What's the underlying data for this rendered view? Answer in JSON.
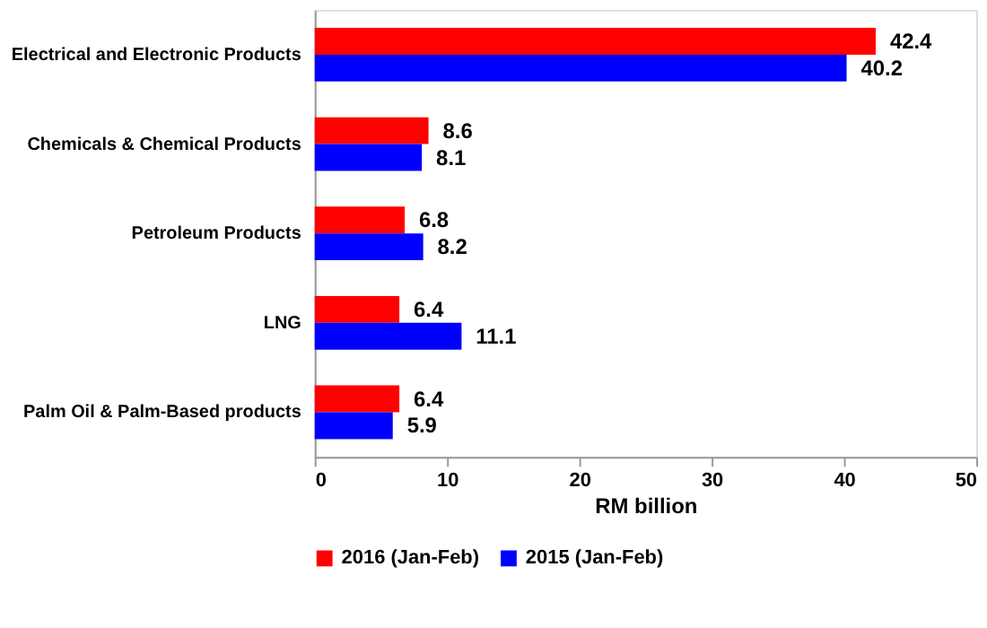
{
  "chart_data": {
    "type": "bar",
    "orientation": "horizontal",
    "xlabel": "RM billion",
    "categories": [
      "Electrical and Electronic Products",
      "Chemicals & Chemical Products",
      "Petroleum Products",
      "LNG",
      "Palm Oil & Palm-Based products"
    ],
    "series": [
      {
        "name": "2016 (Jan-Feb)",
        "color": "#ff0000",
        "values": [
          42.4,
          8.6,
          6.8,
          6.4,
          6.4
        ]
      },
      {
        "name": "2015 (Jan-Feb)",
        "color": "#0000ff",
        "values": [
          40.2,
          8.1,
          8.2,
          11.1,
          5.9
        ]
      }
    ],
    "xlim": [
      0,
      50
    ],
    "xticks": [
      0,
      10,
      20,
      30,
      40,
      50
    ],
    "data_labels": true,
    "legend": "bottom",
    "grid": false
  }
}
